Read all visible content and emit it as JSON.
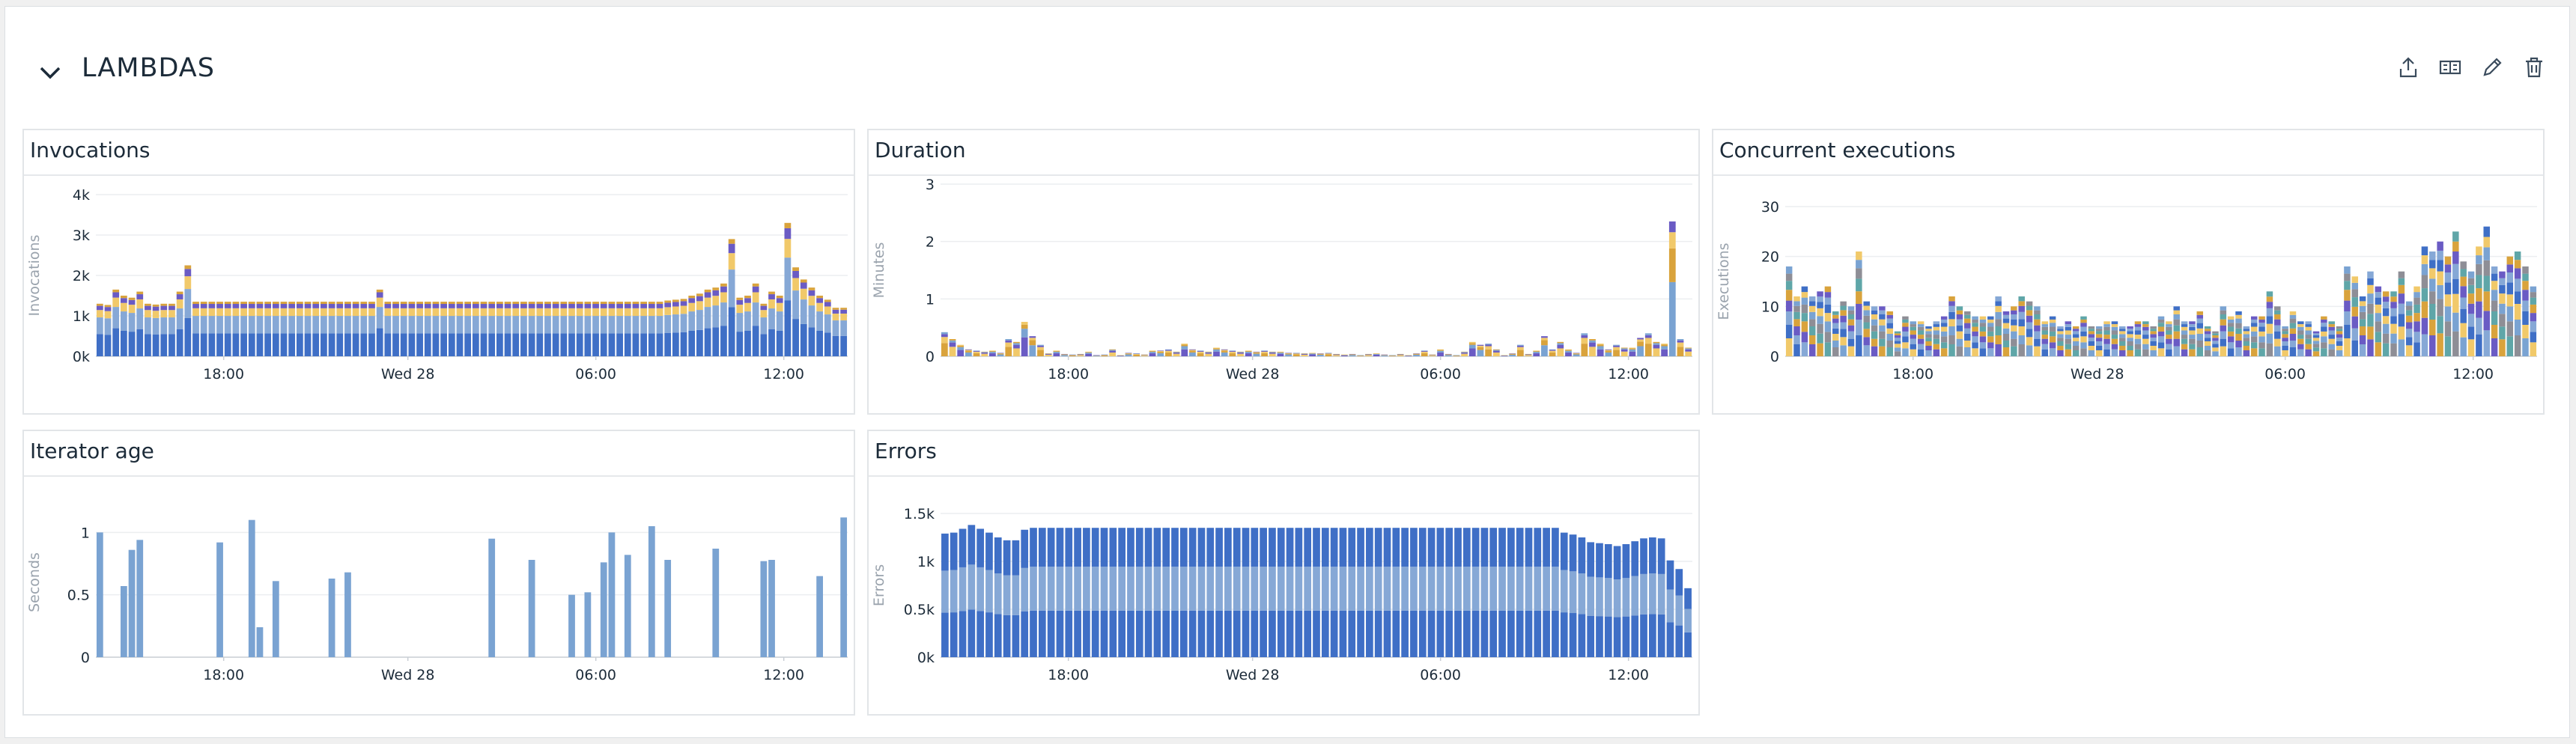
{
  "group": {
    "title": "LAMBDAS"
  },
  "toolbar": {
    "icons": [
      "export-icon",
      "layout-icon",
      "edit-icon",
      "trash-icon"
    ]
  },
  "colors": {
    "dark_blue": "#3f6fc6",
    "mid_blue": "#86a8d6",
    "light_blue": "#7aa3d2",
    "purple": "#6a5bc4",
    "yellow": "#f1c96a",
    "orange": "#d9a33c",
    "gray": "#8e8e96",
    "teal": "#5fa6a8"
  },
  "x_ticks": [
    "18:00",
    "Wed 28",
    "06:00",
    "12:00"
  ],
  "widgets": [
    {
      "key": "invocations",
      "title": "Invocations",
      "chart_data": {
        "type": "bar",
        "stacked": true,
        "ylabel": "Invocations",
        "y_ticks": [
          "0k",
          "1k",
          "2k",
          "3k",
          "4k"
        ],
        "ylim": [
          0,
          4000
        ],
        "x_ticks": [
          "18:00",
          "Wed 28",
          "06:00",
          "12:00"
        ],
        "totals": [
          1300,
          1270,
          1650,
          1500,
          1450,
          1600,
          1300,
          1280,
          1300,
          1300,
          1600,
          2250,
          1350,
          1350,
          1350,
          1350,
          1350,
          1350,
          1350,
          1350,
          1350,
          1350,
          1350,
          1350,
          1350,
          1350,
          1350,
          1350,
          1350,
          1350,
          1350,
          1350,
          1350,
          1350,
          1350,
          1650,
          1350,
          1350,
          1350,
          1350,
          1350,
          1350,
          1350,
          1350,
          1350,
          1350,
          1350,
          1350,
          1350,
          1350,
          1350,
          1350,
          1350,
          1350,
          1350,
          1350,
          1350,
          1350,
          1350,
          1350,
          1350,
          1350,
          1350,
          1350,
          1350,
          1350,
          1350,
          1350,
          1350,
          1350,
          1350,
          1380,
          1400,
          1420,
          1500,
          1550,
          1650,
          1700,
          1800,
          2900,
          1450,
          1500,
          1800,
          1300,
          1600,
          1500,
          3300,
          2200,
          1900,
          1700,
          1500,
          1400,
          1200,
          1200
        ],
        "segment_fractions": [
          0.42,
          0.32,
          0.14,
          0.08,
          0.04
        ],
        "series_colors": [
          "#3f6fc6",
          "#86a8d6",
          "#f1c96a",
          "#6a5bc4",
          "#d9a33c"
        ]
      }
    },
    {
      "key": "duration",
      "title": "Duration",
      "chart_data": {
        "type": "bar",
        "stacked": true,
        "ylabel": "Minutes",
        "y_ticks": [
          "0",
          "1",
          "2",
          "3"
        ],
        "ylim": [
          0,
          3
        ],
        "x_ticks": [
          "18:00",
          "Wed 28",
          "06:00",
          "12:00"
        ],
        "totals": [
          0.42,
          0.3,
          0.2,
          0.12,
          0.1,
          0.08,
          0.1,
          0.06,
          0.3,
          0.25,
          0.6,
          0.35,
          0.2,
          0.05,
          0.1,
          0.04,
          0.03,
          0.04,
          0.08,
          0.02,
          0.03,
          0.12,
          0.02,
          0.06,
          0.05,
          0.03,
          0.1,
          0.1,
          0.12,
          0.08,
          0.22,
          0.12,
          0.1,
          0.08,
          0.15,
          0.12,
          0.1,
          0.08,
          0.1,
          0.08,
          0.1,
          0.08,
          0.08,
          0.06,
          0.06,
          0.05,
          0.06,
          0.05,
          0.06,
          0.04,
          0.03,
          0.04,
          0.02,
          0.04,
          0.05,
          0.03,
          0.02,
          0.04,
          0.02,
          0.05,
          0.1,
          0.03,
          0.12,
          0.04,
          0.02,
          0.08,
          0.25,
          0.2,
          0.22,
          0.12,
          0.02,
          0.05,
          0.2,
          0.04,
          0.1,
          0.35,
          0.12,
          0.25,
          0.12,
          0.06,
          0.4,
          0.3,
          0.22,
          0.12,
          0.2,
          0.15,
          0.15,
          0.32,
          0.4,
          0.25,
          0.22,
          2.35,
          0.3,
          0.15
        ],
        "segment_fractions": [
          0.55,
          0.25,
          0.12,
          0.08
        ],
        "series_colors": [
          "#d9a33c",
          "#f1c96a",
          "#6a5bc4",
          "#7aa3d2"
        ]
      }
    },
    {
      "key": "concurrent",
      "title": "Concurrent executions",
      "chart_data": {
        "type": "bar",
        "stacked": true,
        "ylabel": "Executions",
        "y_ticks": [
          "0",
          "10",
          "20",
          "30"
        ],
        "ylim": [
          0,
          30
        ],
        "x_ticks": [
          "18:00",
          "Wed 28",
          "06:00",
          "12:00"
        ],
        "totals": [
          18,
          12,
          14,
          12,
          13,
          14,
          9,
          11,
          10,
          21,
          11,
          10,
          10,
          9,
          5,
          8,
          7,
          7,
          6,
          7,
          8,
          12,
          10,
          9,
          8,
          8,
          8,
          12,
          9,
          10,
          12,
          11,
          10,
          7,
          8,
          6,
          7,
          6,
          8,
          6,
          6,
          7,
          7,
          6,
          6,
          7,
          7,
          6,
          8,
          7,
          10,
          7,
          7,
          9,
          6,
          5,
          10,
          8,
          9,
          6,
          8,
          8,
          13,
          10,
          6,
          9,
          7,
          7,
          5,
          8,
          7,
          6,
          18,
          16,
          12,
          17,
          14,
          13,
          13,
          17,
          11,
          14,
          22,
          21,
          23,
          20,
          25,
          19,
          17,
          22,
          26,
          18,
          17,
          20,
          21,
          18,
          14
        ],
        "segment_fractions": [
          0.2,
          0.15,
          0.15,
          0.12,
          0.12,
          0.1,
          0.08,
          0.08
        ],
        "series_colors": [
          "#f1c96a",
          "#3f6fc6",
          "#86a8d6",
          "#6a5bc4",
          "#d9a33c",
          "#5fa6a8",
          "#8e8e96",
          "#7aa3d2"
        ]
      }
    },
    {
      "key": "iterator",
      "title": "Iterator age",
      "chart_data": {
        "type": "bar",
        "stacked": false,
        "ylabel": "Seconds",
        "y_ticks": [
          "0",
          "0.5",
          "1"
        ],
        "ylim": [
          0,
          1.2
        ],
        "x_ticks": [
          "18:00",
          "Wed 28",
          "06:00",
          "12:00"
        ],
        "totals": [
          1.0,
          0,
          0,
          0.57,
          0.86,
          0.94,
          0,
          0,
          0,
          0,
          0,
          0,
          0,
          0,
          0,
          0.92,
          0,
          0,
          0,
          1.1,
          0.24,
          0,
          0.61,
          0,
          0,
          0,
          0,
          0,
          0,
          0.63,
          0,
          0.68,
          0,
          0,
          0,
          0,
          0,
          0,
          0,
          0,
          0,
          0,
          0,
          0,
          0,
          0,
          0,
          0,
          0,
          0.95,
          0,
          0,
          0,
          0,
          0.78,
          0,
          0,
          0,
          0,
          0.5,
          0,
          0.52,
          0,
          0.76,
          1.0,
          0,
          0.82,
          0,
          0,
          1.05,
          0,
          0.78,
          0,
          0,
          0,
          0,
          0,
          0.87,
          0,
          0,
          0,
          0,
          0,
          0.77,
          0.78,
          0,
          0,
          0,
          0,
          0,
          0.65,
          0,
          0,
          1.12
        ],
        "series_colors": [
          "#7aa3d2"
        ]
      }
    },
    {
      "key": "errors",
      "title": "Errors",
      "chart_data": {
        "type": "bar",
        "stacked": true,
        "ylabel": "Errors",
        "y_ticks": [
          "0k",
          "0.5k",
          "1k",
          "1.5k"
        ],
        "ylim": [
          0,
          1500
        ],
        "x_ticks": [
          "18:00",
          "Wed 28",
          "06:00",
          "12:00"
        ],
        "totals": [
          1290,
          1300,
          1340,
          1380,
          1340,
          1300,
          1250,
          1220,
          1220,
          1330,
          1350,
          1350,
          1350,
          1350,
          1350,
          1350,
          1350,
          1350,
          1350,
          1350,
          1350,
          1350,
          1350,
          1350,
          1350,
          1350,
          1350,
          1350,
          1350,
          1350,
          1350,
          1350,
          1350,
          1350,
          1350,
          1350,
          1350,
          1350,
          1350,
          1350,
          1350,
          1350,
          1350,
          1350,
          1350,
          1350,
          1350,
          1350,
          1350,
          1350,
          1350,
          1350,
          1350,
          1350,
          1350,
          1350,
          1350,
          1350,
          1350,
          1350,
          1350,
          1350,
          1350,
          1350,
          1350,
          1350,
          1350,
          1350,
          1350,
          1350,
          1300,
          1280,
          1250,
          1200,
          1190,
          1180,
          1160,
          1180,
          1210,
          1240,
          1250,
          1240,
          1010,
          920,
          720
        ],
        "segment_fractions": [
          0.36,
          0.34,
          0.3
        ],
        "series_colors": [
          "#3f6fc6",
          "#86a8d6",
          "#3f6fc6"
        ]
      }
    }
  ]
}
